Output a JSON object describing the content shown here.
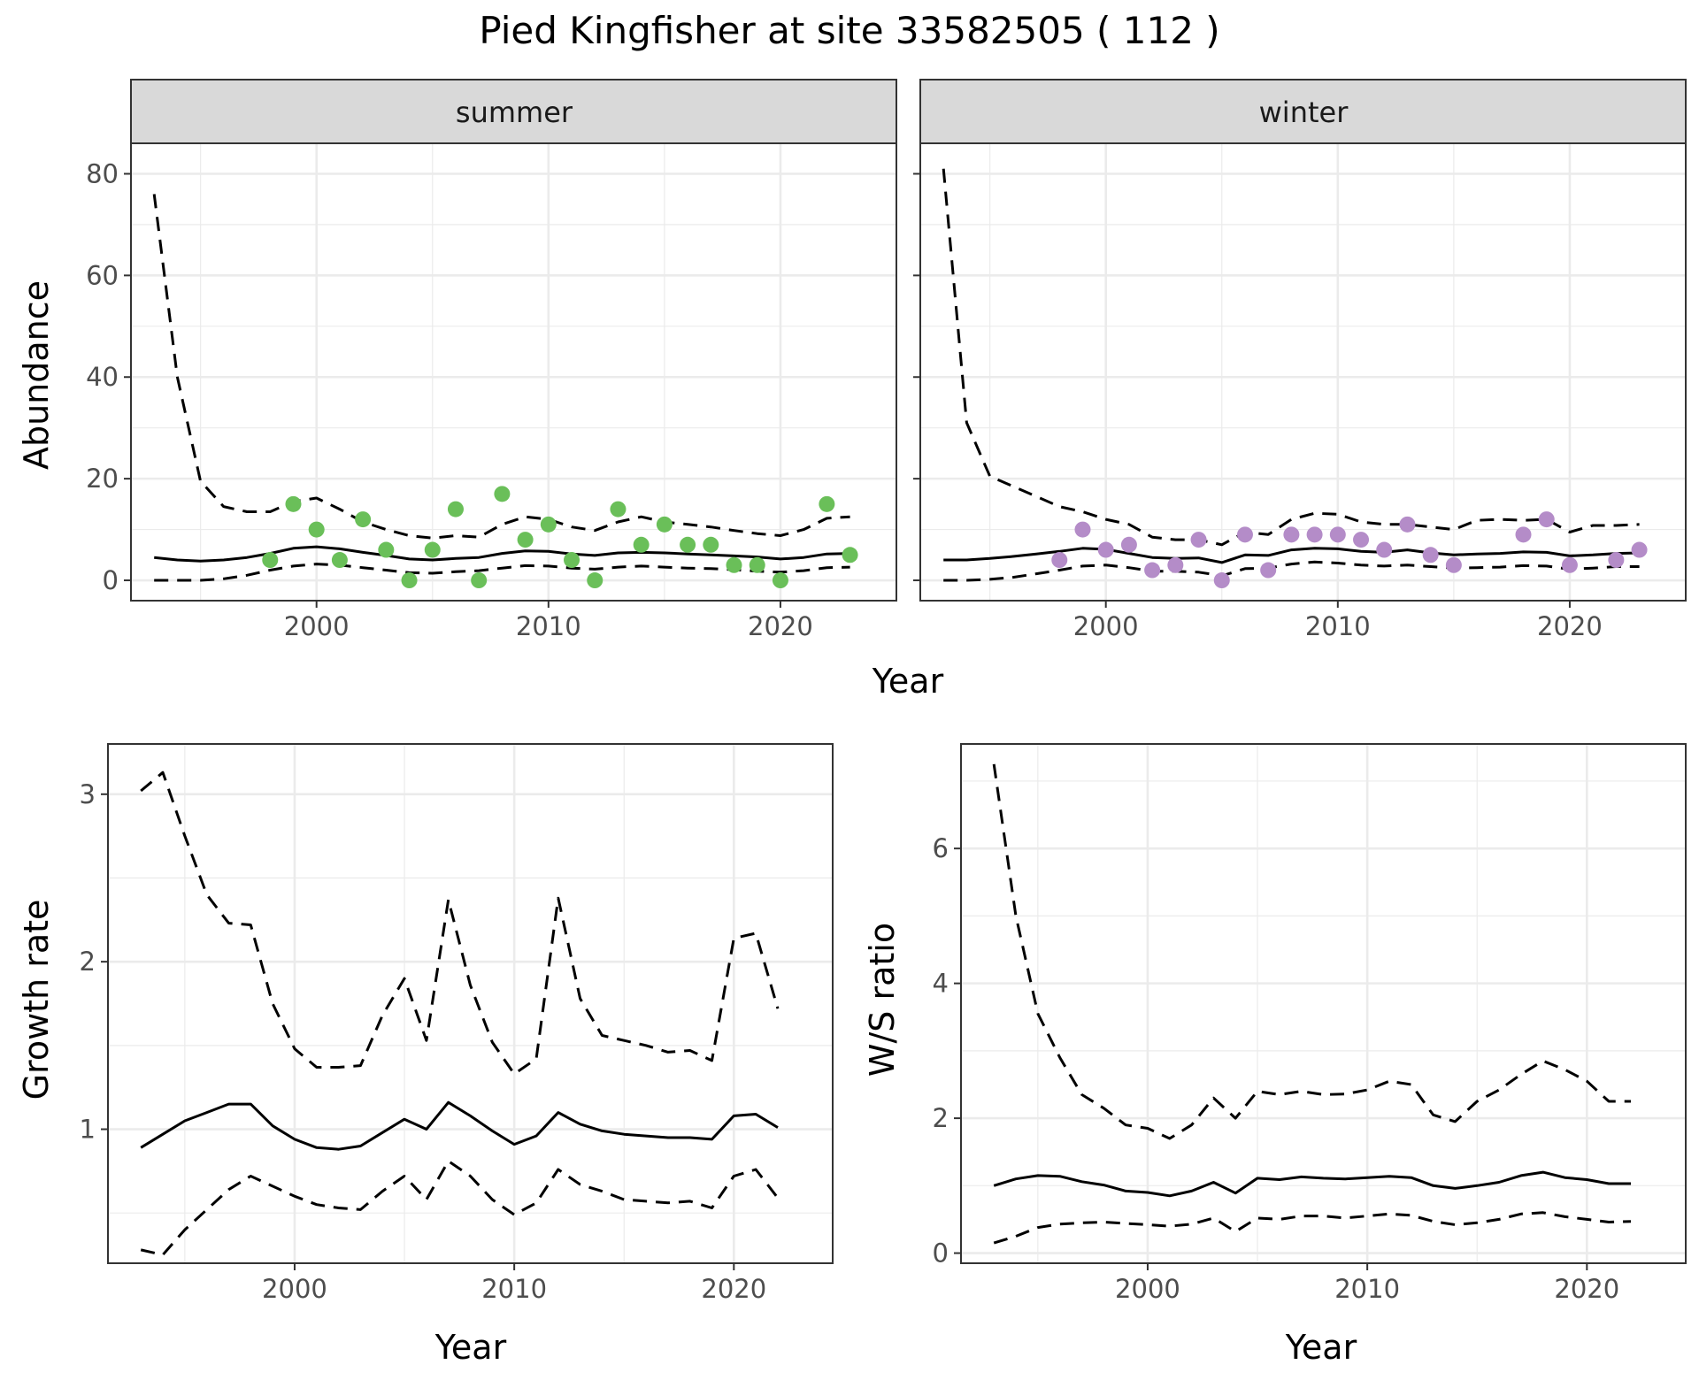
{
  "title": "Pied Kingfisher at site 33582505 ( 112 )",
  "colors": {
    "summer_points": "#6ABF59",
    "winter_points": "#B48CC8",
    "strip_bg": "#D9D9D9",
    "grid": "#EBEBEB",
    "line": "#000000"
  },
  "chart_data": [
    {
      "type": "line",
      "panel": "summer",
      "strip_label": "summer",
      "xlabel": "Year",
      "ylabel": "Abundance",
      "xlim": [
        1992,
        2025
      ],
      "ylim": [
        -4,
        86
      ],
      "x_ticks": [
        2000,
        2010,
        2020
      ],
      "y_ticks": [
        0,
        20,
        40,
        60,
        80
      ],
      "grid": true,
      "x": [
        1993,
        1994,
        1995,
        1996,
        1997,
        1998,
        1999,
        2000,
        2001,
        2002,
        2003,
        2004,
        2005,
        2006,
        2007,
        2008,
        2009,
        2010,
        2011,
        2012,
        2013,
        2014,
        2015,
        2016,
        2017,
        2018,
        2019,
        2020,
        2021,
        2022,
        2023
      ],
      "series": [
        {
          "style": "solid",
          "values": [
            4.5,
            4.0,
            3.8,
            4.0,
            4.5,
            5.3,
            6.3,
            6.6,
            6.2,
            5.5,
            4.9,
            4.2,
            4.0,
            4.3,
            4.5,
            5.3,
            5.8,
            5.7,
            5.2,
            4.9,
            5.4,
            5.5,
            5.4,
            5.2,
            5.0,
            4.8,
            4.6,
            4.2,
            4.5,
            5.2,
            5.3
          ]
        },
        {
          "style": "dashed",
          "values": [
            76,
            40,
            19.5,
            14.5,
            13.5,
            13.5,
            15.5,
            16.2,
            14.0,
            11.5,
            10.0,
            8.8,
            8.3,
            8.8,
            8.5,
            11.0,
            12.5,
            12.0,
            10.5,
            9.8,
            11.5,
            12.5,
            11.5,
            11.0,
            10.5,
            9.8,
            9.2,
            8.8,
            10.0,
            12.2,
            12.5
          ]
        },
        {
          "style": "dashed",
          "values": [
            0,
            0,
            0,
            0.3,
            1.0,
            2.0,
            2.8,
            3.2,
            3.0,
            2.5,
            2.0,
            1.5,
            1.4,
            1.7,
            1.9,
            2.4,
            2.9,
            2.8,
            2.4,
            2.2,
            2.6,
            2.8,
            2.6,
            2.4,
            2.3,
            2.1,
            1.8,
            1.6,
            1.9,
            2.5,
            2.6
          ]
        }
      ],
      "points": {
        "x": [
          1998,
          1999,
          2000,
          2001,
          2002,
          2003,
          2004,
          2005,
          2006,
          2007,
          2008,
          2009,
          2010,
          2011,
          2012,
          2013,
          2014,
          2015,
          2016,
          2017,
          2018,
          2019,
          2020,
          2022,
          2023
        ],
        "y": [
          4,
          15,
          10,
          4,
          12,
          6,
          0,
          6,
          14,
          0,
          17,
          8,
          11,
          4,
          0,
          14,
          7,
          11,
          7,
          7,
          3,
          3,
          0,
          15,
          5
        ]
      }
    },
    {
      "type": "line",
      "panel": "winter",
      "strip_label": "winter",
      "xlabel": "Year",
      "ylabel": "Abundance",
      "xlim": [
        1992,
        2025
      ],
      "ylim": [
        -4,
        86
      ],
      "x_ticks": [
        2000,
        2010,
        2020
      ],
      "y_ticks": [
        0,
        20,
        40,
        60,
        80
      ],
      "grid": true,
      "x": [
        1993,
        1994,
        1995,
        1996,
        1997,
        1998,
        1999,
        2000,
        2001,
        2002,
        2003,
        2004,
        2005,
        2006,
        2007,
        2008,
        2009,
        2010,
        2011,
        2012,
        2013,
        2014,
        2015,
        2016,
        2017,
        2018,
        2019,
        2020,
        2021,
        2022,
        2023
      ],
      "series": [
        {
          "style": "solid",
          "values": [
            4.0,
            4.0,
            4.3,
            4.7,
            5.2,
            5.7,
            6.3,
            6.1,
            5.3,
            4.5,
            4.3,
            4.4,
            3.5,
            5.0,
            4.9,
            6.0,
            6.3,
            6.2,
            5.7,
            5.5,
            6.0,
            5.4,
            5.0,
            5.2,
            5.3,
            5.6,
            5.5,
            4.8,
            5.0,
            5.3,
            5.4
          ]
        },
        {
          "style": "dashed",
          "values": [
            81,
            31,
            20.5,
            18.5,
            16.5,
            14.5,
            13.5,
            12.0,
            11.0,
            8.5,
            8.0,
            8.0,
            7.0,
            9.5,
            9.0,
            12.0,
            13.2,
            13.0,
            11.5,
            11.0,
            11.0,
            10.5,
            10.0,
            11.8,
            12.0,
            11.8,
            12.0,
            9.5,
            10.8,
            10.8,
            11.0
          ]
        },
        {
          "style": "dashed",
          "values": [
            0,
            0,
            0.2,
            0.6,
            1.3,
            2.0,
            2.8,
            3.0,
            2.5,
            1.8,
            1.8,
            1.6,
            0.9,
            2.3,
            2.4,
            3.2,
            3.6,
            3.4,
            3.0,
            2.8,
            3.0,
            2.7,
            2.4,
            2.5,
            2.6,
            2.9,
            2.8,
            2.2,
            2.4,
            2.7,
            2.7
          ]
        }
      ],
      "points": {
        "x": [
          1998,
          1999,
          2000,
          2001,
          2002,
          2003,
          2004,
          2005,
          2006,
          2007,
          2008,
          2009,
          2010,
          2011,
          2012,
          2013,
          2014,
          2015,
          2018,
          2019,
          2020,
          2022,
          2023
        ],
        "y": [
          4,
          10,
          6,
          7,
          2,
          3,
          8,
          0,
          9,
          2,
          9,
          9,
          9,
          8,
          6,
          11,
          5,
          3,
          9,
          12,
          3,
          4,
          6
        ]
      }
    },
    {
      "type": "line",
      "panel": "growth",
      "xlabel": "Year",
      "ylabel": "Growth rate",
      "xlim": [
        1991.5,
        2024.5
      ],
      "ylim": [
        0.2,
        3.3
      ],
      "x_ticks": [
        2000,
        2010,
        2020
      ],
      "y_ticks": [
        1,
        2,
        3
      ],
      "grid": true,
      "x": [
        1993,
        1994,
        1995,
        1996,
        1997,
        1998,
        1999,
        2000,
        2001,
        2002,
        2003,
        2004,
        2005,
        2006,
        2007,
        2008,
        2009,
        2010,
        2011,
        2012,
        2013,
        2014,
        2015,
        2016,
        2017,
        2018,
        2019,
        2020,
        2021,
        2022
      ],
      "series": [
        {
          "style": "solid",
          "values": [
            0.89,
            0.97,
            1.05,
            1.1,
            1.15,
            1.15,
            1.02,
            0.94,
            0.89,
            0.88,
            0.9,
            0.98,
            1.06,
            1.0,
            1.16,
            1.08,
            0.99,
            0.91,
            0.96,
            1.1,
            1.03,
            0.99,
            0.97,
            0.96,
            0.95,
            0.95,
            0.94,
            1.08,
            1.09,
            1.01
          ]
        },
        {
          "style": "dashed",
          "values": [
            3.02,
            3.13,
            2.75,
            2.4,
            2.23,
            2.22,
            1.75,
            1.48,
            1.37,
            1.37,
            1.38,
            1.68,
            1.9,
            1.53,
            2.37,
            1.86,
            1.52,
            1.33,
            1.42,
            2.38,
            1.78,
            1.56,
            1.53,
            1.5,
            1.46,
            1.47,
            1.41,
            2.14,
            2.17,
            1.72
          ]
        },
        {
          "style": "dashed",
          "values": [
            0.28,
            0.25,
            0.4,
            0.52,
            0.64,
            0.72,
            0.66,
            0.6,
            0.55,
            0.53,
            0.52,
            0.63,
            0.72,
            0.58,
            0.81,
            0.72,
            0.58,
            0.49,
            0.56,
            0.76,
            0.67,
            0.63,
            0.58,
            0.57,
            0.56,
            0.57,
            0.53,
            0.72,
            0.76,
            0.59
          ]
        }
      ]
    },
    {
      "type": "line",
      "panel": "ws_ratio",
      "xlabel": "Year",
      "ylabel": "W/S ratio",
      "xlim": [
        1991.5,
        2024.5
      ],
      "ylim": [
        -0.15,
        7.55
      ],
      "x_ticks": [
        2000,
        2010,
        2020
      ],
      "y_ticks": [
        0,
        2,
        4,
        6
      ],
      "grid": true,
      "x": [
        1993,
        1994,
        1995,
        1996,
        1997,
        1998,
        1999,
        2000,
        2001,
        2002,
        2003,
        2004,
        2005,
        2006,
        2007,
        2008,
        2009,
        2010,
        2011,
        2012,
        2013,
        2014,
        2015,
        2016,
        2017,
        2018,
        2019,
        2020,
        2021,
        2022
      ],
      "series": [
        {
          "style": "solid",
          "values": [
            1.0,
            1.1,
            1.15,
            1.14,
            1.06,
            1.01,
            0.92,
            0.9,
            0.85,
            0.92,
            1.05,
            0.89,
            1.11,
            1.09,
            1.13,
            1.11,
            1.1,
            1.12,
            1.14,
            1.12,
            1.0,
            0.96,
            1.0,
            1.05,
            1.15,
            1.2,
            1.12,
            1.09,
            1.03,
            1.03
          ]
        },
        {
          "style": "dashed",
          "values": [
            7.25,
            5.0,
            3.55,
            2.9,
            2.35,
            2.15,
            1.9,
            1.85,
            1.7,
            1.9,
            2.3,
            2.0,
            2.4,
            2.35,
            2.4,
            2.35,
            2.36,
            2.42,
            2.55,
            2.5,
            2.05,
            1.95,
            2.25,
            2.42,
            2.65,
            2.85,
            2.72,
            2.55,
            2.25,
            2.25
          ]
        },
        {
          "style": "dashed",
          "values": [
            0.15,
            0.25,
            0.38,
            0.43,
            0.45,
            0.46,
            0.44,
            0.42,
            0.4,
            0.43,
            0.52,
            0.32,
            0.52,
            0.5,
            0.55,
            0.55,
            0.52,
            0.55,
            0.58,
            0.56,
            0.47,
            0.42,
            0.45,
            0.5,
            0.58,
            0.6,
            0.54,
            0.5,
            0.46,
            0.47
          ]
        }
      ]
    }
  ]
}
